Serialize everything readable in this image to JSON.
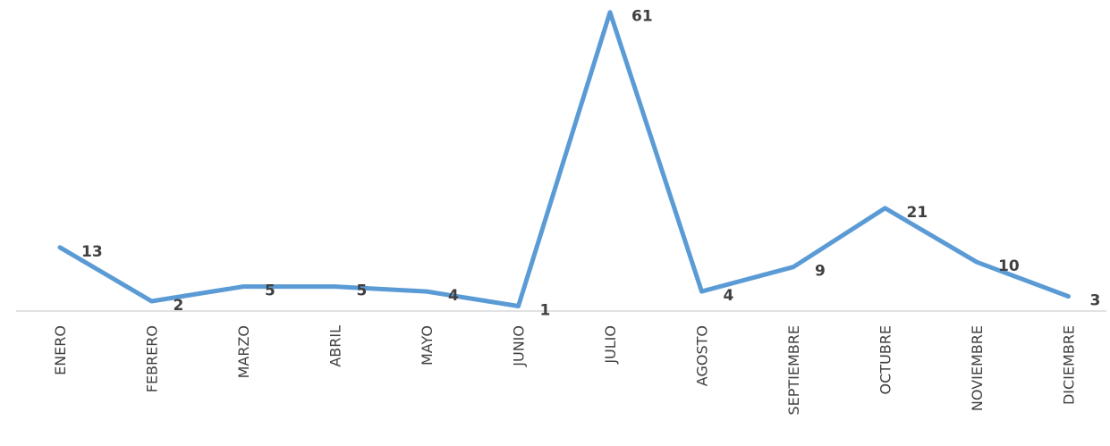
{
  "chart_data": {
    "type": "line",
    "categories": [
      "ENERO",
      "FEBRERO",
      "MARZO",
      "ABRIL",
      "MAYO",
      "JUNIO",
      "JULIO",
      "AGOSTO",
      "SEPTIEMBRE",
      "OCTUBRE",
      "NOVIEMBRE",
      "DICIEMBRE"
    ],
    "series": [
      {
        "values": [
          13,
          2,
          5,
          5,
          4,
          1,
          61,
          4,
          9,
          21,
          10,
          3
        ]
      }
    ],
    "title": "",
    "xlabel": "",
    "ylabel": "",
    "ylim": [
      0,
      63
    ],
    "grid": false,
    "legend": "none",
    "colors": {
      "line": "#5b9bd5",
      "labels": "#404040",
      "axis": "#d9d9d9"
    }
  }
}
